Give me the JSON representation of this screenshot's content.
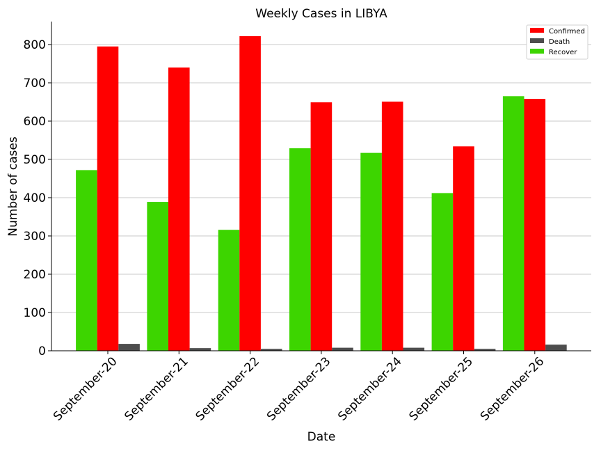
{
  "chart_data": {
    "type": "bar",
    "title": "Weekly Cases in LIBYA",
    "xlabel": "Date",
    "ylabel": "Number of cases",
    "categories": [
      "September-20",
      "September-21",
      "September-22",
      "September-23",
      "September-24",
      "September-25",
      "September-26"
    ],
    "series": [
      {
        "name": "Recover",
        "color": "#3dd500",
        "values": [
          472,
          389,
          316,
          529,
          517,
          412,
          665
        ]
      },
      {
        "name": "Confirmed",
        "color": "#ff0000",
        "values": [
          795,
          740,
          822,
          649,
          651,
          534,
          658
        ]
      },
      {
        "name": "Death",
        "color": "#4d4d4d",
        "values": [
          18,
          7,
          5,
          8,
          8,
          5,
          16
        ]
      }
    ],
    "legend_order": [
      "Confirmed",
      "Death",
      "Recover"
    ],
    "yticks": [
      0,
      100,
      200,
      300,
      400,
      500,
      600,
      700,
      800
    ],
    "ylim": [
      0,
      860
    ],
    "grid": "horizontal",
    "legend_position": "top-right"
  }
}
